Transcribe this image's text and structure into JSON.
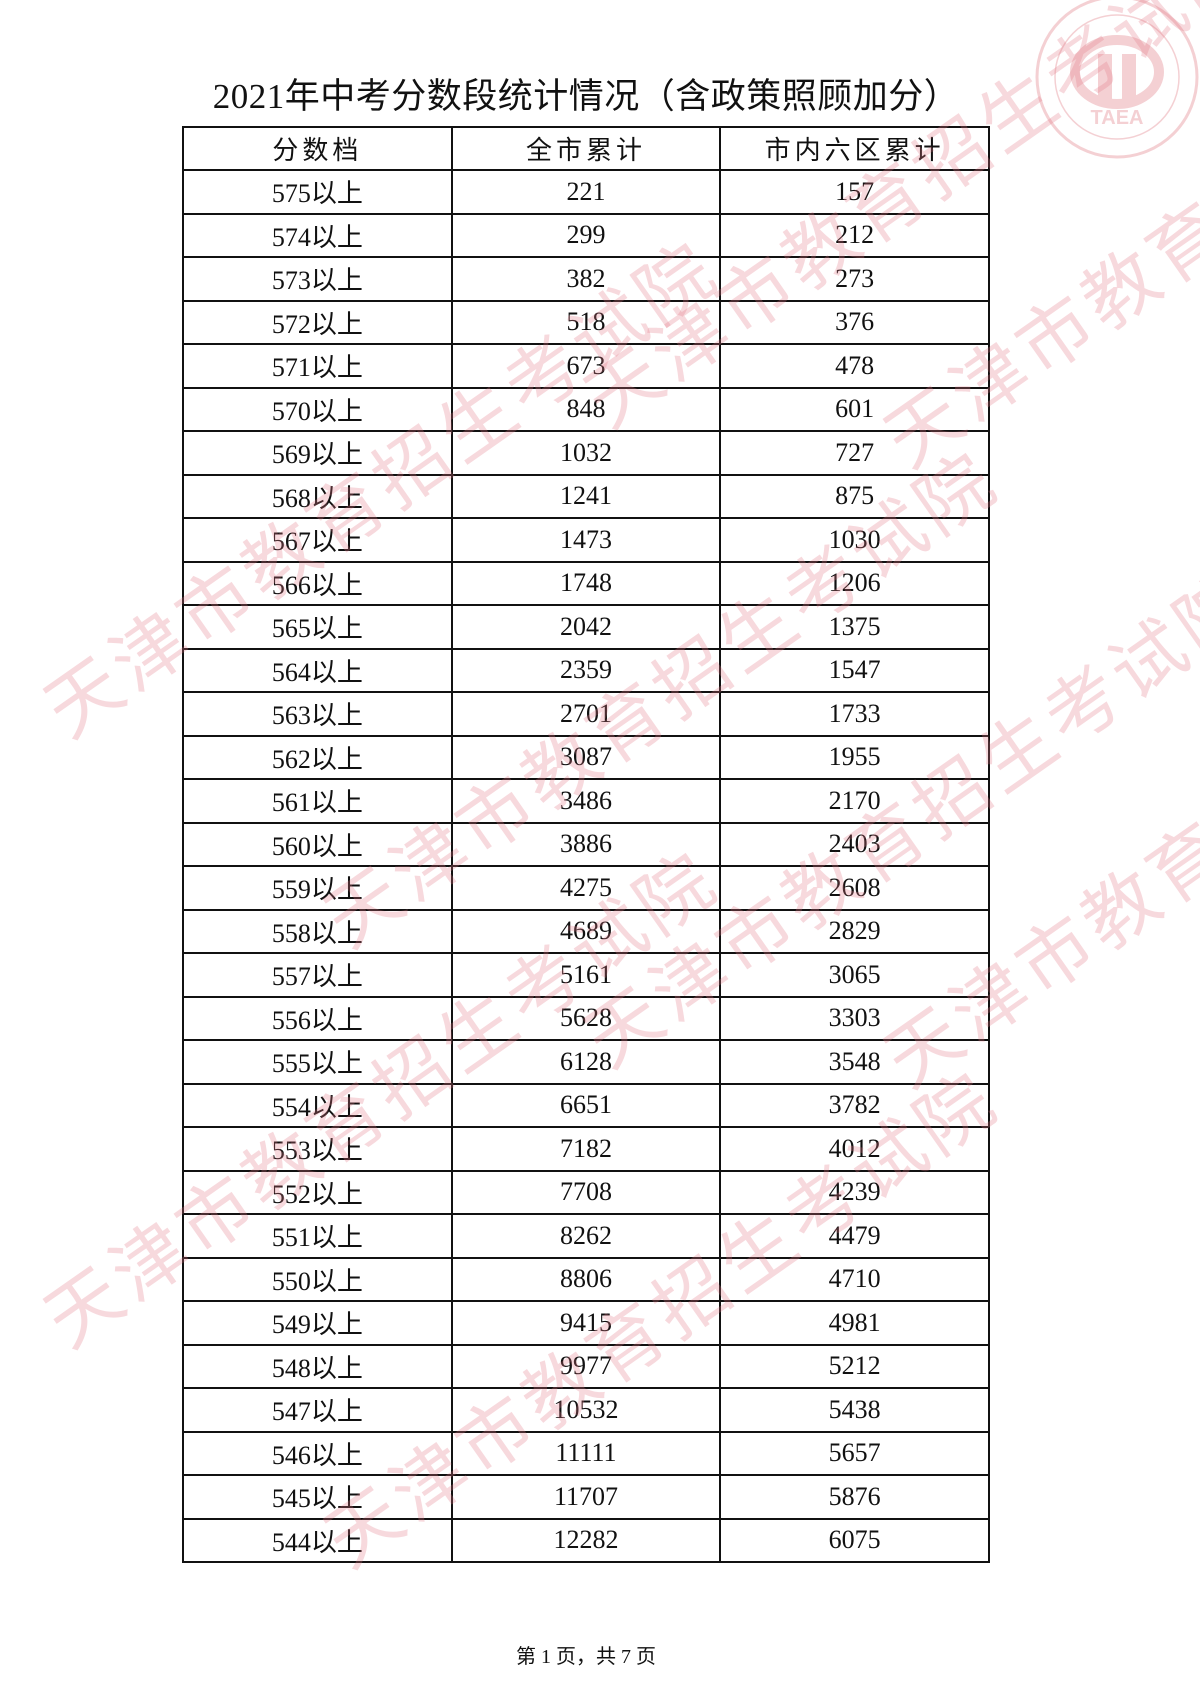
{
  "title": "2021年中考分数段统计情况（含政策照顾加分）",
  "watermark": "天津市教育招生考试院",
  "seal": {
    "text": "TAEA",
    "color": "#e07a84"
  },
  "table": {
    "headers": [
      "分数档",
      "全市累计",
      "市内六区累计"
    ],
    "rows": [
      [
        "575以上",
        "221",
        "157"
      ],
      [
        "574以上",
        "299",
        "212"
      ],
      [
        "573以上",
        "382",
        "273"
      ],
      [
        "572以上",
        "518",
        "376"
      ],
      [
        "571以上",
        "673",
        "478"
      ],
      [
        "570以上",
        "848",
        "601"
      ],
      [
        "569以上",
        "1032",
        "727"
      ],
      [
        "568以上",
        "1241",
        "875"
      ],
      [
        "567以上",
        "1473",
        "1030"
      ],
      [
        "566以上",
        "1748",
        "1206"
      ],
      [
        "565以上",
        "2042",
        "1375"
      ],
      [
        "564以上",
        "2359",
        "1547"
      ],
      [
        "563以上",
        "2701",
        "1733"
      ],
      [
        "562以上",
        "3087",
        "1955"
      ],
      [
        "561以上",
        "3486",
        "2170"
      ],
      [
        "560以上",
        "3886",
        "2403"
      ],
      [
        "559以上",
        "4275",
        "2608"
      ],
      [
        "558以上",
        "4689",
        "2829"
      ],
      [
        "557以上",
        "5161",
        "3065"
      ],
      [
        "556以上",
        "5628",
        "3303"
      ],
      [
        "555以上",
        "6128",
        "3548"
      ],
      [
        "554以上",
        "6651",
        "3782"
      ],
      [
        "553以上",
        "7182",
        "4012"
      ],
      [
        "552以上",
        "7708",
        "4239"
      ],
      [
        "551以上",
        "8262",
        "4479"
      ],
      [
        "550以上",
        "8806",
        "4710"
      ],
      [
        "549以上",
        "9415",
        "4981"
      ],
      [
        "548以上",
        "9977",
        "5212"
      ],
      [
        "547以上",
        "10532",
        "5438"
      ],
      [
        "546以上",
        "11111",
        "5657"
      ],
      [
        "545以上",
        "11707",
        "5876"
      ],
      [
        "544以上",
        "12282",
        "6075"
      ]
    ]
  },
  "footer": "第 1 页，共 7 页"
}
